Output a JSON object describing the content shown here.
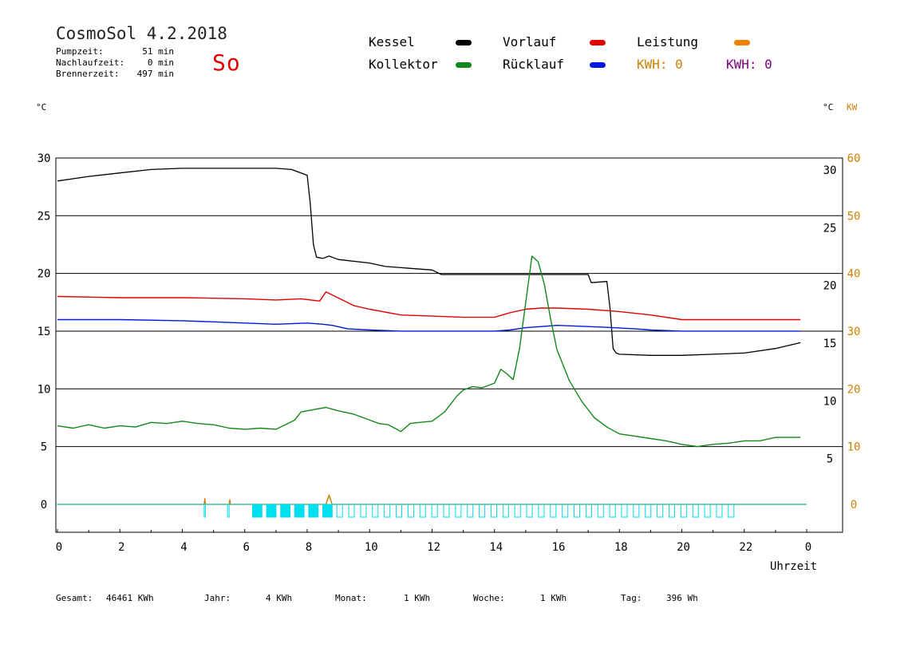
{
  "header": {
    "title": "CosmoSol 4.2.2018",
    "day": "So",
    "info": [
      {
        "label": "Pumpzeit:",
        "value": "51 min"
      },
      {
        "label": "Nachlaufzeit:",
        "value": "0 min"
      },
      {
        "label": "Brennerzeit:",
        "value": "497 min"
      }
    ]
  },
  "legend": {
    "kessel": {
      "label": "Kessel",
      "color": "#000000"
    },
    "kollektor": {
      "label": "Kollektor",
      "color": "#11881a"
    },
    "vorlauf": {
      "label": "Vorlauf",
      "color": "#e00000"
    },
    "ruecklauf": {
      "label": "Rücklauf",
      "color": "#0018e0"
    },
    "leistung": {
      "label": "Leistung",
      "color": "#f08000"
    },
    "kwh1": {
      "label": "KWH: 0",
      "color": "#d08000"
    },
    "kwh2": {
      "label": "KWH: 0",
      "color": "#800080"
    }
  },
  "axes": {
    "left_unit": "°C",
    "right_unit": "°C",
    "right_unit2": "KW",
    "x_label": "Uhrzeit"
  },
  "footer": [
    {
      "label": "Gesamt:",
      "value": "46461 KWh"
    },
    {
      "label": "Jahr:",
      "value": "4 KWh"
    },
    {
      "label": "Monat:",
      "value": "1 KWh"
    },
    {
      "label": "Woche:",
      "value": "1 KWh"
    },
    {
      "label": "Tag:",
      "value": "396 Wh"
    }
  ],
  "chart_data": {
    "type": "line",
    "x_range": [
      0,
      24
    ],
    "ylim": [
      -2.5,
      30
    ],
    "grid": "horizontal",
    "x_ticks": [
      "0",
      "2",
      "4",
      "6",
      "8",
      "10",
      "12",
      "14",
      "16",
      "18",
      "20",
      "22",
      "0"
    ],
    "y_ticks_left": [
      "0",
      "5",
      "10",
      "15",
      "20",
      "25",
      "30"
    ],
    "y_ticks_right": [
      "5",
      "10",
      "15",
      "20",
      "25",
      "30"
    ],
    "y_ticks_kw": [
      "0",
      "10",
      "20",
      "30",
      "40",
      "50",
      "60"
    ],
    "series": [
      {
        "name": "Kessel",
        "color": "#000000",
        "x": [
          0,
          1,
          2,
          3,
          4,
          5,
          6,
          7,
          7.5,
          8,
          8.1,
          8.2,
          8.3,
          8.5,
          8.7,
          9,
          10,
          10.5,
          11,
          12,
          12.3,
          13,
          14,
          15,
          16,
          17,
          17.1,
          17.6,
          17.7,
          17.8,
          17.9,
          18,
          19,
          20,
          21,
          22,
          23,
          23.8
        ],
        "y": [
          28,
          28.4,
          28.7,
          29,
          29.1,
          29.1,
          29.1,
          29.1,
          29,
          28.5,
          26,
          22.5,
          21.4,
          21.3,
          21.5,
          21.2,
          20.9,
          20.6,
          20.5,
          20.3,
          19.9,
          19.9,
          19.9,
          19.9,
          19.9,
          19.9,
          19.2,
          19.3,
          17,
          13.5,
          13.1,
          13.0,
          12.9,
          12.9,
          13,
          13.1,
          13.5,
          14
        ]
      },
      {
        "name": "Vorlauf",
        "color": "#e00000",
        "x": [
          0,
          2,
          4,
          6,
          7,
          7.8,
          8.4,
          8.6,
          8.9,
          9.5,
          10,
          11,
          12,
          13,
          14,
          14.5,
          15,
          15.5,
          16,
          17,
          17.5,
          18,
          19,
          20,
          21,
          22,
          23,
          23.8
        ],
        "y": [
          18,
          17.9,
          17.9,
          17.8,
          17.7,
          17.8,
          17.6,
          18.4,
          18.0,
          17.2,
          16.9,
          16.4,
          16.3,
          16.2,
          16.2,
          16.6,
          16.9,
          17.0,
          17.0,
          16.9,
          16.8,
          16.7,
          16.4,
          16.0,
          16.0,
          16.0,
          16.0,
          16.0
        ]
      },
      {
        "name": "Rücklauf",
        "color": "#0018e0",
        "x": [
          0,
          2,
          4,
          6,
          7,
          8,
          8.5,
          8.8,
          9.3,
          10,
          11,
          12,
          13,
          14,
          14.5,
          15,
          15.5,
          16,
          17,
          17.8,
          18.5,
          19,
          20,
          21,
          22,
          23,
          23.8
        ],
        "y": [
          16.0,
          16.0,
          15.9,
          15.7,
          15.6,
          15.7,
          15.6,
          15.5,
          15.2,
          15.1,
          15.0,
          15.0,
          15.0,
          15.0,
          15.1,
          15.3,
          15.4,
          15.5,
          15.4,
          15.3,
          15.2,
          15.1,
          15.0,
          15.0,
          15.0,
          15.0,
          15.0
        ]
      },
      {
        "name": "Kollektor",
        "color": "#11881a",
        "x": [
          0,
          0.5,
          1,
          1.5,
          2,
          2.5,
          3,
          3.5,
          4,
          4.5,
          5,
          5.5,
          6,
          6.5,
          7,
          7.3,
          7.6,
          7.8,
          8.2,
          8.6,
          9,
          9.5,
          10,
          10.3,
          10.6,
          11,
          11.3,
          11.6,
          12,
          12.4,
          12.8,
          13.0,
          13.3,
          13.6,
          14,
          14.2,
          14.4,
          14.6,
          14.8,
          15.0,
          15.2,
          15.4,
          15.6,
          15.8,
          16,
          16.4,
          16.8,
          17.2,
          17.6,
          18,
          18.5,
          19,
          19.5,
          20,
          20.5,
          21,
          21.5,
          22,
          22.5,
          23,
          23.5,
          23.8
        ],
        "y": [
          6.8,
          6.6,
          6.9,
          6.6,
          6.8,
          6.7,
          7.1,
          7.0,
          7.2,
          7.0,
          6.9,
          6.6,
          6.5,
          6.6,
          6.5,
          6.9,
          7.3,
          8.0,
          8.2,
          8.4,
          8.1,
          7.8,
          7.3,
          7.0,
          6.9,
          6.3,
          7.0,
          7.1,
          7.2,
          8.0,
          9.4,
          9.9,
          10.2,
          10.1,
          10.5,
          11.7,
          11.3,
          10.8,
          13.5,
          17.5,
          21.5,
          21.0,
          19.0,
          16.0,
          13.4,
          10.7,
          8.9,
          7.5,
          6.7,
          6.1,
          5.9,
          5.7,
          5.5,
          5.2,
          5.0,
          5.2,
          5.3,
          5.5,
          5.5,
          5.8,
          5.8,
          5.8
        ]
      },
      {
        "name": "Leistung",
        "color": "#d08000",
        "x": [
          0,
          4.7,
          4.72,
          4.74,
          5.5,
          5.52,
          5.54,
          8.6,
          8.7,
          8.8,
          24
        ],
        "y": [
          0,
          0,
          0.5,
          0,
          0,
          0.4,
          0,
          0,
          0.8,
          0,
          0
        ]
      }
    ]
  }
}
